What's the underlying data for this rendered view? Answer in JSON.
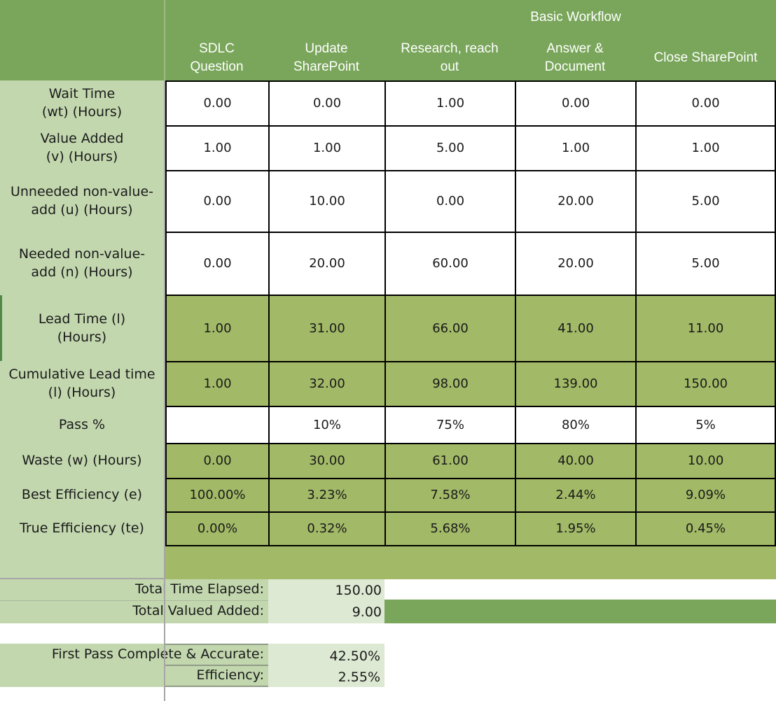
{
  "header": {
    "group_title": "Basic Workflow",
    "steps": [
      "SDLC\nQuestion",
      "Update\nSharePoint",
      "Research, reach\nout",
      "Answer &\nDocument",
      "Close SharePoint"
    ]
  },
  "rows": [
    {
      "label": "Wait Time\n(wt) (Hours)",
      "values": [
        "0.00",
        "0.00",
        "1.00",
        "0.00",
        "0.00"
      ]
    },
    {
      "label": "Value Added\n(v) (Hours)",
      "values": [
        "1.00",
        "1.00",
        "5.00",
        "1.00",
        "1.00"
      ]
    },
    {
      "label": "Unneeded non-value-\nadd (u) (Hours)",
      "values": [
        "0.00",
        "10.00",
        "0.00",
        "20.00",
        "5.00"
      ]
    },
    {
      "label": "Needed non-value-\nadd (n) (Hours)",
      "values": [
        "0.00",
        "20.00",
        "60.00",
        "20.00",
        "5.00"
      ]
    },
    {
      "label": "Lead Time (l)\n(Hours)",
      "values": [
        "1.00",
        "31.00",
        "66.00",
        "41.00",
        "11.00"
      ]
    },
    {
      "label": "Cumulative Lead time\n(l) (Hours)",
      "values": [
        "1.00",
        "32.00",
        "98.00",
        "139.00",
        "150.00"
      ]
    },
    {
      "label": "Pass %",
      "values": [
        "",
        "10%",
        "75%",
        "80%",
        "5%"
      ]
    },
    {
      "label": "Waste (w) (Hours)",
      "values": [
        "0.00",
        "30.00",
        "61.00",
        "40.00",
        "10.00"
      ]
    },
    {
      "label": "Best Efficiency (e)",
      "values": [
        "100.00%",
        "3.23%",
        "7.58%",
        "2.44%",
        "9.09%"
      ]
    },
    {
      "label": "True Efficiency (te)",
      "values": [
        "0.00%",
        "0.32%",
        "5.68%",
        "1.95%",
        "0.45%"
      ]
    }
  ],
  "summary": {
    "total_time_label": "Total Time Elapsed:",
    "total_time_value": "150.00",
    "total_value_label": "Total Valued Added:",
    "total_value_value": "9.00",
    "first_pass_label": "First Pass Complete & Accurate:",
    "first_pass_value": "42.50%",
    "efficiency_label": "Efficiency:",
    "efficiency_value": "2.55%"
  },
  "colors": {
    "header_green": "#79a65a",
    "label_green": "#c2d7ae",
    "row_green": "#a2b967",
    "summary_value_bg": "#dde9d3",
    "white": "#ffffff"
  }
}
